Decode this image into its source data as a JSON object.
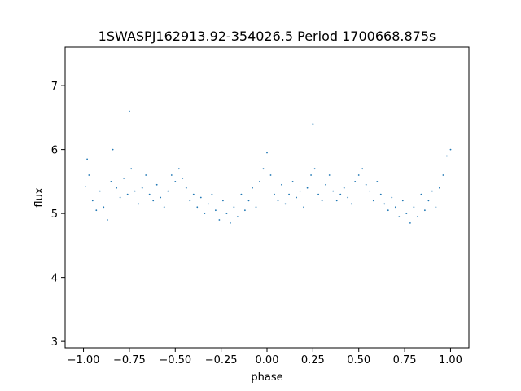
{
  "chart_data": {
    "type": "scatter",
    "title": "1SWASPJ162913.92-354026.5 Period 1700668.875s",
    "xlabel": "phase",
    "ylabel": "flux",
    "xlim": [
      -1.1,
      1.1
    ],
    "ylim": [
      2.9,
      7.6
    ],
    "xticks": [
      -1.0,
      -0.75,
      -0.5,
      -0.25,
      0.0,
      0.25,
      0.5,
      0.75,
      1.0
    ],
    "xtick_labels": [
      "−1.00",
      "−0.75",
      "−0.50",
      "−0.25",
      "0.00",
      "0.25",
      "0.50",
      "0.75",
      "1.00"
    ],
    "yticks": [
      3,
      4,
      5,
      6,
      7
    ],
    "ytick_labels": [
      "3",
      "4",
      "5",
      "6",
      "7"
    ],
    "grid": false,
    "legend": "none",
    "marker_color": "#1f77b4",
    "series": [
      {
        "description": "phase-folded light curve, mirrored over phase -1..1",
        "points": [
          [
            -0.99,
            5.42
          ],
          [
            -0.98,
            5.85
          ],
          [
            -0.97,
            5.6
          ],
          [
            -0.95,
            5.2
          ],
          [
            -0.93,
            5.05
          ],
          [
            -0.91,
            5.35
          ],
          [
            -0.89,
            5.1
          ],
          [
            -0.87,
            4.9
          ],
          [
            -0.85,
            5.5
          ],
          [
            -0.84,
            6.0
          ],
          [
            -0.82,
            5.4
          ],
          [
            -0.8,
            5.25
          ],
          [
            -0.78,
            5.55
          ],
          [
            -0.76,
            5.3
          ],
          [
            -0.75,
            6.6
          ],
          [
            -0.74,
            5.7
          ],
          [
            -0.72,
            5.35
          ],
          [
            -0.7,
            5.15
          ],
          [
            -0.68,
            5.4
          ],
          [
            -0.66,
            5.6
          ],
          [
            -0.64,
            5.3
          ],
          [
            -0.62,
            5.2
          ],
          [
            -0.6,
            5.45
          ],
          [
            -0.58,
            5.25
          ],
          [
            -0.56,
            5.1
          ],
          [
            -0.54,
            5.35
          ],
          [
            -0.52,
            5.6
          ],
          [
            -0.5,
            5.5
          ],
          [
            -0.48,
            5.7
          ],
          [
            -0.46,
            5.55
          ],
          [
            -0.44,
            5.4
          ],
          [
            -0.42,
            5.2
          ],
          [
            -0.4,
            5.3
          ],
          [
            -0.38,
            5.1
          ],
          [
            -0.36,
            5.25
          ],
          [
            -0.34,
            5.0
          ],
          [
            -0.32,
            5.15
          ],
          [
            -0.3,
            5.3
          ],
          [
            -0.28,
            5.05
          ],
          [
            -0.26,
            4.9
          ],
          [
            -0.24,
            5.2
          ],
          [
            -0.22,
            5.0
          ],
          [
            -0.2,
            4.85
          ],
          [
            -0.18,
            5.1
          ],
          [
            -0.16,
            4.95
          ],
          [
            -0.14,
            5.3
          ],
          [
            -0.12,
            5.05
          ],
          [
            -0.1,
            5.2
          ],
          [
            -0.08,
            5.4
          ],
          [
            -0.06,
            5.1
          ],
          [
            -0.04,
            5.5
          ],
          [
            -0.02,
            5.7
          ],
          [
            0.0,
            5.95
          ],
          [
            0.02,
            5.6
          ],
          [
            0.04,
            5.3
          ],
          [
            0.06,
            5.2
          ],
          [
            0.08,
            5.45
          ],
          [
            0.1,
            5.15
          ],
          [
            0.12,
            5.3
          ],
          [
            0.14,
            5.5
          ],
          [
            0.16,
            5.25
          ],
          [
            0.18,
            5.35
          ],
          [
            0.2,
            5.1
          ],
          [
            0.22,
            5.4
          ],
          [
            0.24,
            5.6
          ],
          [
            0.25,
            6.4
          ],
          [
            0.26,
            5.7
          ],
          [
            0.28,
            5.3
          ],
          [
            0.3,
            5.2
          ],
          [
            0.32,
            5.45
          ],
          [
            0.34,
            5.6
          ],
          [
            0.36,
            5.35
          ],
          [
            0.38,
            5.2
          ],
          [
            0.4,
            5.3
          ],
          [
            0.42,
            5.4
          ],
          [
            0.44,
            5.25
          ],
          [
            0.46,
            5.15
          ],
          [
            0.48,
            5.5
          ],
          [
            0.5,
            5.6
          ],
          [
            0.52,
            5.7
          ],
          [
            0.54,
            5.45
          ],
          [
            0.56,
            5.35
          ],
          [
            0.58,
            5.2
          ],
          [
            0.6,
            5.5
          ],
          [
            0.62,
            5.3
          ],
          [
            0.64,
            5.15
          ],
          [
            0.66,
            5.05
          ],
          [
            0.68,
            5.25
          ],
          [
            0.7,
            5.1
          ],
          [
            0.72,
            4.95
          ],
          [
            0.74,
            5.2
          ],
          [
            0.76,
            5.0
          ],
          [
            0.78,
            4.85
          ],
          [
            0.8,
            5.1
          ],
          [
            0.82,
            4.95
          ],
          [
            0.84,
            5.3
          ],
          [
            0.86,
            5.05
          ],
          [
            0.88,
            5.2
          ],
          [
            0.9,
            5.35
          ],
          [
            0.92,
            5.1
          ],
          [
            0.94,
            5.4
          ],
          [
            0.96,
            5.6
          ],
          [
            0.98,
            5.9
          ],
          [
            1.0,
            6.0
          ]
        ]
      }
    ]
  }
}
